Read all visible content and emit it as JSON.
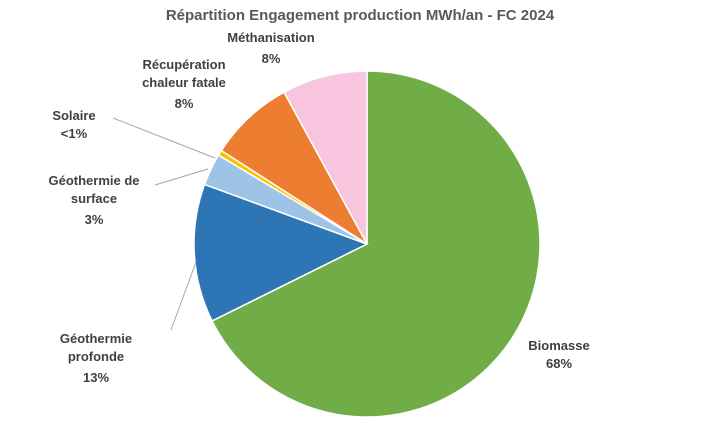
{
  "chart_data": {
    "type": "pie",
    "title": "Répartition Engagement production MWh/an - FC 2024",
    "slices": [
      {
        "name": "Biomasse",
        "value": 68,
        "value_label": "68%",
        "color": "#70ad47"
      },
      {
        "name": "Géothermie profonde",
        "value": 13,
        "value_label": "13%",
        "color": "#2e75b6"
      },
      {
        "name": "Géothermie de surface",
        "value": 3,
        "value_label": "3%",
        "color": "#9dc3e6"
      },
      {
        "name": "Solaire",
        "value": 0.5,
        "value_label": "<1%",
        "color": "#ffc000"
      },
      {
        "name": "Récupération chaleur fatale",
        "value": 8,
        "value_label": "8%",
        "color": "#ed7d31"
      },
      {
        "name": "Méthanisation",
        "value": 8,
        "value_label": "8%",
        "color": "#f8c5df"
      }
    ]
  }
}
